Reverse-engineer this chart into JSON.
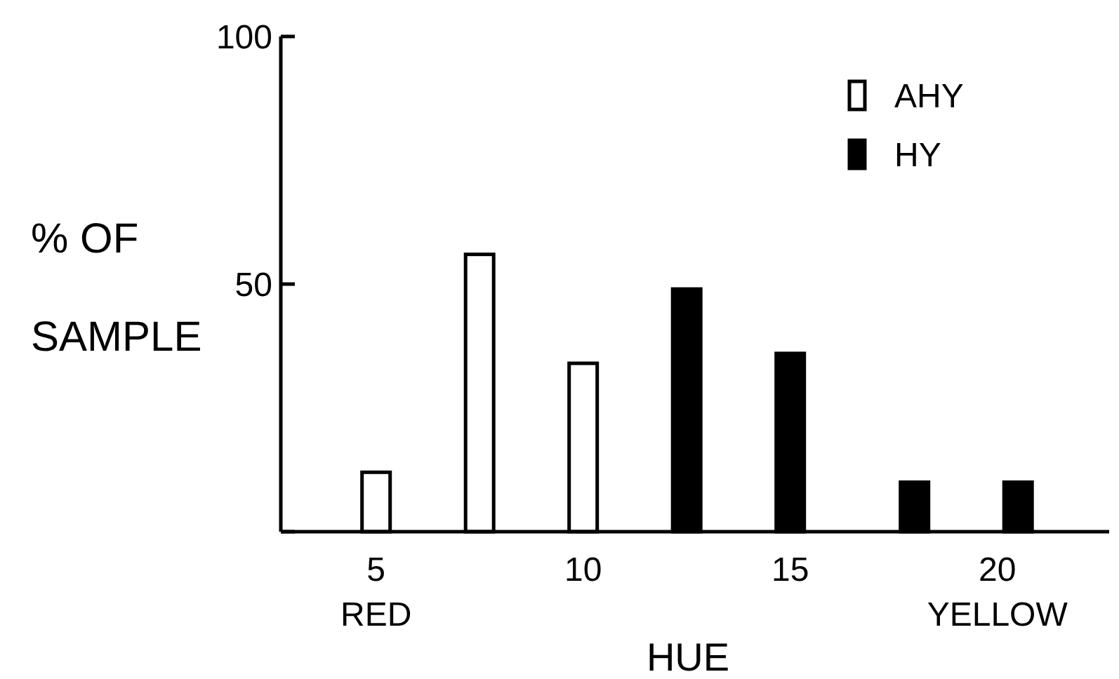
{
  "chart_data": {
    "type": "bar",
    "xlabel": "HUE",
    "ylabel": "% OF\nSAMPLE",
    "xlim": [
      2.7,
      22.7
    ],
    "xticks": [
      {
        "value": 5,
        "label": "5\nRED"
      },
      10,
      15,
      {
        "value": 20,
        "label": "20\nYELLOW"
      }
    ],
    "ylim": [
      0,
      100
    ],
    "yticks": [
      {
        "value": 0,
        "label": null
      },
      50,
      100
    ],
    "series": [
      {
        "name": "AHY",
        "color": "#ffffff",
        "x": [
          5,
          7.5,
          10
        ],
        "values": [
          12,
          56,
          34
        ]
      },
      {
        "name": "HY",
        "color": "#000000",
        "x": [
          12.5,
          15,
          18,
          20.5
        ],
        "values": [
          49,
          36,
          10,
          10
        ]
      }
    ],
    "legend": "top right",
    "grid": false
  }
}
